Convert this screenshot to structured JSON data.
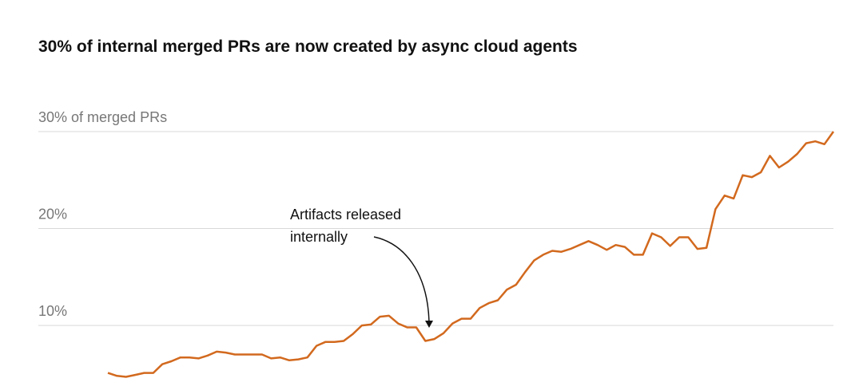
{
  "chart_data": {
    "type": "line",
    "title": "30% of internal merged PRs are now created by async cloud agents",
    "series": [
      {
        "color": "#d2691e",
        "values": [
          5.1,
          4.8,
          4.7,
          4.9,
          5.1,
          5.1,
          6.0,
          6.3,
          6.7,
          6.7,
          6.6,
          6.9,
          7.3,
          7.2,
          7.0,
          7.0,
          7.0,
          7.0,
          6.6,
          6.7,
          6.4,
          6.5,
          6.7,
          7.9,
          8.3,
          8.3,
          8.4,
          9.1,
          10.0,
          10.1,
          10.9,
          11.0,
          10.2,
          9.8,
          9.8,
          8.4,
          8.6,
          9.2,
          10.2,
          10.7,
          10.7,
          11.8,
          12.3,
          12.6,
          13.7,
          14.2,
          15.5,
          16.7,
          17.3,
          17.7,
          17.6,
          17.9,
          18.3,
          18.7,
          18.3,
          17.8,
          18.3,
          18.1,
          17.3,
          17.3,
          19.5,
          19.1,
          18.2,
          19.1,
          19.1,
          17.9,
          18.0,
          22.0,
          23.4,
          23.1,
          25.5,
          25.3,
          25.8,
          27.5,
          26.3,
          26.9,
          27.7,
          28.8,
          29.0,
          28.7,
          30.0
        ]
      }
    ],
    "ylim": [
      4,
      30
    ],
    "yticks": [
      {
        "value": 10,
        "label": "10%"
      },
      {
        "value": 20,
        "label": "20%"
      },
      {
        "value": 30,
        "label": "30% of merged PRs"
      }
    ],
    "grid": true,
    "annotations": [
      {
        "lines": [
          "Artifacts released",
          "internally"
        ]
      }
    ]
  }
}
